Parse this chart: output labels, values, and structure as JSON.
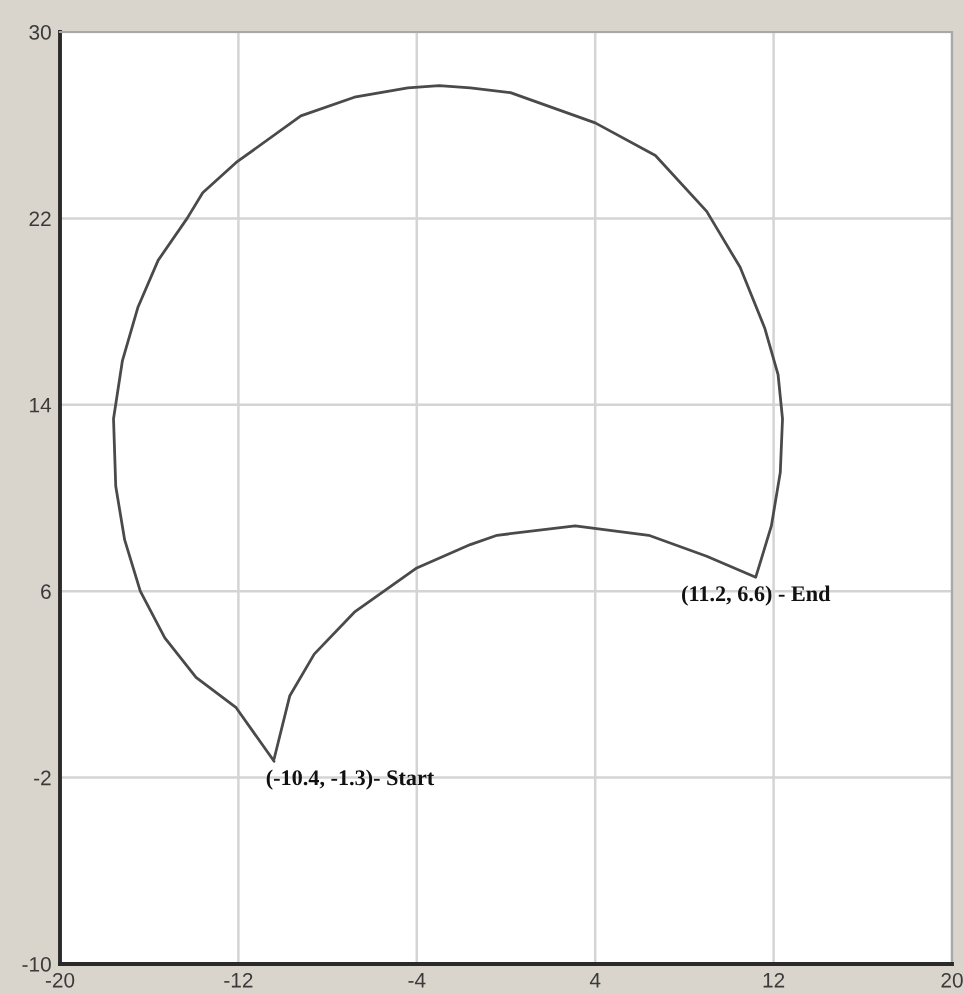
{
  "chart_data": {
    "type": "line",
    "series": [
      {
        "color": "#4a4a4a",
        "x": [
          -10.4,
          -12.1,
          -13.9,
          -15.3,
          -16.4,
          -17.1,
          -17.5,
          -17.6,
          -17.2,
          -16.5,
          -15.6,
          -14.3,
          -13.6,
          -12.1,
          -9.2,
          -6.8,
          -4.4,
          -3.0,
          -1.6,
          0.2,
          4.0,
          6.7,
          9.0,
          10.5,
          11.6,
          12.2,
          12.4,
          12.3,
          11.9,
          11.2,
          9.0,
          6.4,
          3.1,
          -0.4,
          -1.6,
          -4.0,
          -6.8,
          -8.6,
          -9.7,
          -10.4
        ],
        "values": [
          -1.3,
          1.0,
          2.3,
          4.0,
          6.0,
          8.2,
          10.5,
          13.4,
          15.9,
          18.2,
          20.2,
          22.0,
          23.1,
          24.4,
          26.4,
          27.2,
          27.6,
          27.7,
          27.6,
          27.4,
          26.1,
          24.7,
          22.3,
          19.9,
          17.3,
          15.3,
          13.4,
          11.1,
          8.8,
          6.6,
          7.5,
          8.4,
          8.8,
          8.4,
          8.0,
          7.0,
          5.1,
          3.3,
          1.5,
          -1.2
        ]
      }
    ],
    "xlim": [
      -20,
      20
    ],
    "ylim": [
      -10,
      30
    ],
    "xticks": [
      -20,
      -12,
      -4,
      4,
      12,
      20
    ],
    "yticks": [
      -10,
      -2,
      6,
      14,
      22,
      30
    ],
    "grid": true,
    "annotations": [
      {
        "text": "(-10.4, -1.3)- Start",
        "x": -10.4,
        "y": -1.3
      },
      {
        "text": "(11.2, 6.6) - End",
        "x": 11.2,
        "y": 6.6
      }
    ]
  }
}
